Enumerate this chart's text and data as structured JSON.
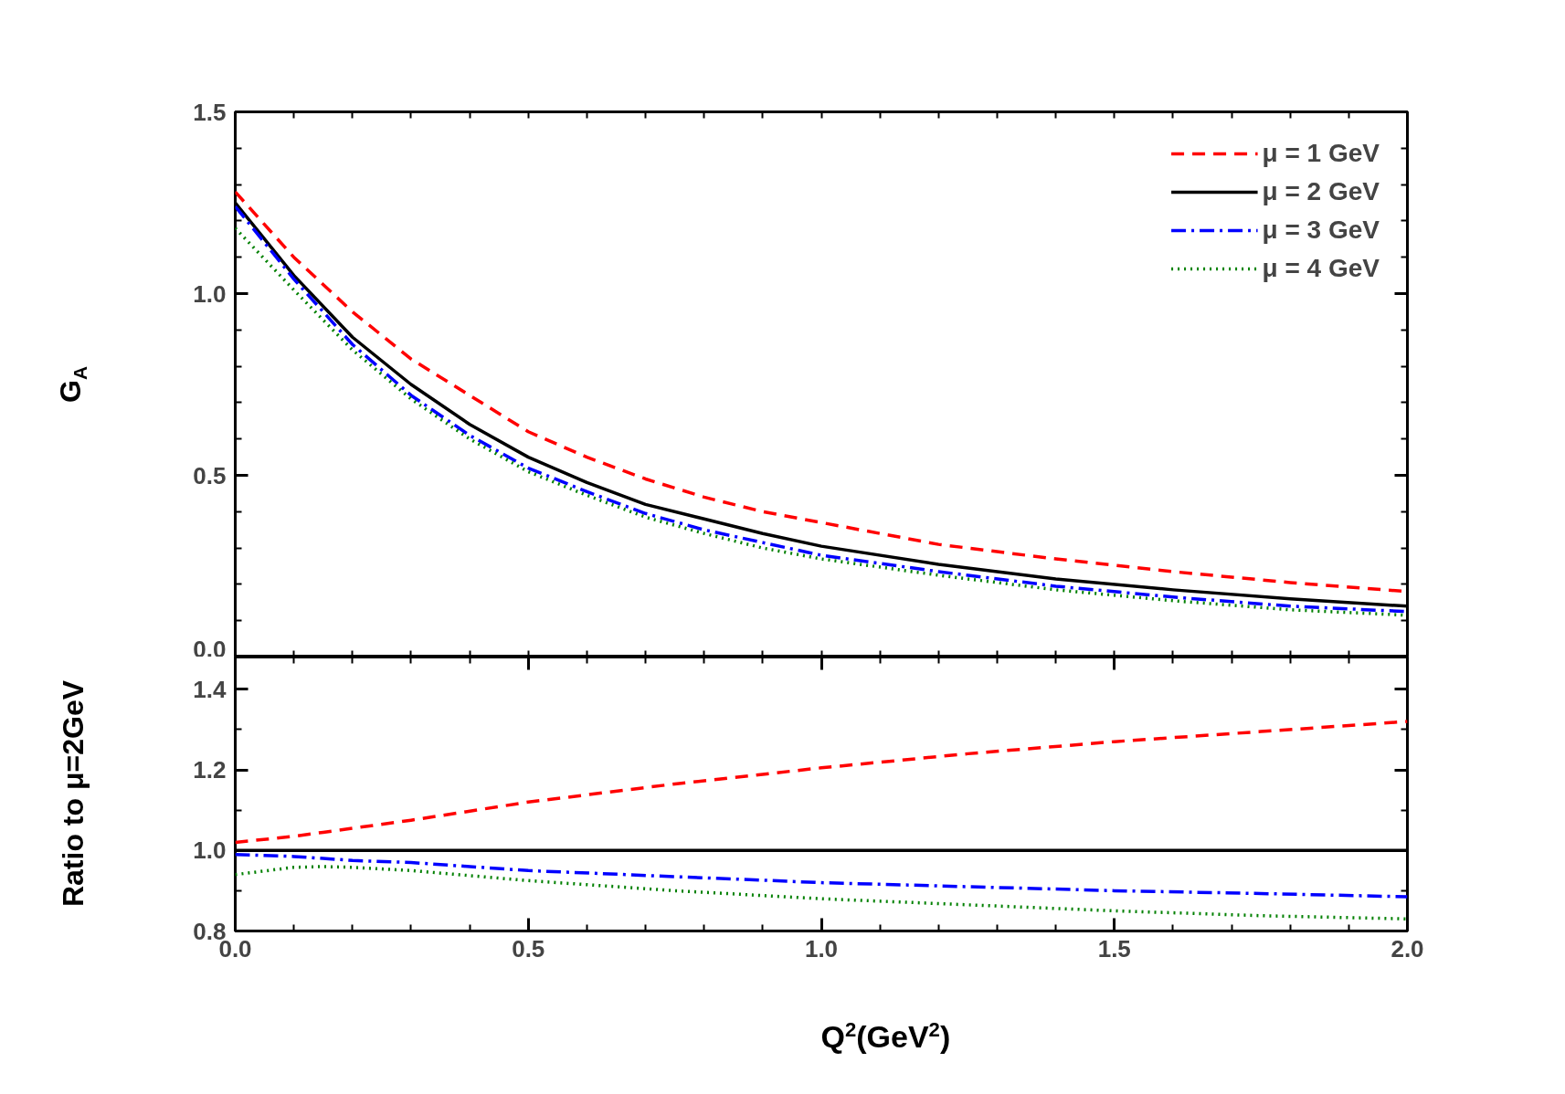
{
  "chart_data": [
    {
      "type": "line",
      "ylabel": "G$_{A}$",
      "xlim": [
        0,
        2
      ],
      "ylim": [
        0,
        1.5
      ],
      "xticks": [
        {
          "value": 0,
          "label": null
        },
        {
          "value": 0.1,
          "label": null
        },
        {
          "value": 0.2,
          "label": null
        },
        {
          "value": 0.3,
          "label": null
        },
        {
          "value": 0.4,
          "label": null
        },
        {
          "value": 0.5,
          "label": null
        },
        {
          "value": 0.6,
          "label": null
        },
        {
          "value": 0.7,
          "label": null
        },
        {
          "value": 0.8,
          "label": null
        },
        {
          "value": 0.9,
          "label": null
        },
        {
          "value": 1,
          "label": null
        },
        {
          "value": 1.1,
          "label": null
        },
        {
          "value": 1.2,
          "label": null
        },
        {
          "value": 1.3,
          "label": null
        },
        {
          "value": 1.4,
          "label": null
        },
        {
          "value": 1.5,
          "label": null
        },
        {
          "value": 1.6,
          "label": null
        },
        {
          "value": 1.7,
          "label": null
        },
        {
          "value": 1.8,
          "label": null
        },
        {
          "value": 1.9,
          "label": null
        },
        {
          "value": 2,
          "label": null
        }
      ],
      "yticks": [
        {
          "value": 0,
          "label": "0.0"
        },
        {
          "value": 0.1,
          "label": null
        },
        {
          "value": 0.2,
          "label": null
        },
        {
          "value": 0.3,
          "label": null
        },
        {
          "value": 0.4,
          "label": null
        },
        {
          "value": 0.5,
          "label": "0.5"
        },
        {
          "value": 0.6,
          "label": null
        },
        {
          "value": 0.7,
          "label": null
        },
        {
          "value": 0.8,
          "label": null
        },
        {
          "value": 0.9,
          "label": null
        },
        {
          "value": 1,
          "label": "1.0"
        },
        {
          "value": 1.1,
          "label": null
        },
        {
          "value": 1.2,
          "label": null
        },
        {
          "value": 1.3,
          "label": null
        },
        {
          "value": 1.4,
          "label": null
        },
        {
          "value": 1.5,
          "label": "1.5"
        }
      ],
      "tick_labels": "y",
      "legend": "top right",
      "x": [
        0,
        0.1,
        0.2,
        0.3,
        0.4,
        0.5,
        0.6,
        0.7,
        0.8,
        0.9,
        1.0,
        1.2,
        1.4,
        1.6,
        1.8,
        2.0
      ],
      "series": [
        {
          "name": "μ = 1 GeV",
          "color": "#ff0000",
          "line_style": "dashed",
          "values": [
            1.28,
            1.1,
            0.95,
            0.82,
            0.72,
            0.62,
            0.55,
            0.49,
            0.44,
            0.4,
            0.37,
            0.31,
            0.27,
            0.235,
            0.205,
            0.18
          ]
        },
        {
          "name": "μ = 2 GeV",
          "color": "#000000",
          "line_style": "solid",
          "values": [
            1.25,
            1.05,
            0.88,
            0.75,
            0.64,
            0.55,
            0.48,
            0.42,
            0.38,
            0.34,
            0.305,
            0.255,
            0.215,
            0.185,
            0.16,
            0.14
          ]
        },
        {
          "name": "μ = 3 GeV",
          "color": "#0000ff",
          "line_style": "dashdot",
          "values": [
            1.24,
            1.04,
            0.86,
            0.72,
            0.61,
            0.52,
            0.455,
            0.395,
            0.35,
            0.315,
            0.28,
            0.235,
            0.195,
            0.165,
            0.14,
            0.125
          ]
        },
        {
          "name": "μ = 4 GeV",
          "color": "#008000",
          "line_style": "dotted",
          "values": [
            1.18,
            1.01,
            0.845,
            0.71,
            0.6,
            0.51,
            0.445,
            0.385,
            0.34,
            0.3,
            0.27,
            0.225,
            0.185,
            0.155,
            0.13,
            0.115
          ]
        }
      ]
    },
    {
      "type": "line",
      "xlabel": "Q$^{2}$(GeV$^{2}$)",
      "ylabel": "Ratio to μ=2GeV",
      "xlim": [
        0,
        2
      ],
      "ylim": [
        0.8,
        1.48
      ],
      "xticks": [
        {
          "value": 0,
          "label": "0.0"
        },
        {
          "value": 0.1,
          "label": null
        },
        {
          "value": 0.2,
          "label": null
        },
        {
          "value": 0.3,
          "label": null
        },
        {
          "value": 0.4,
          "label": null
        },
        {
          "value": 0.5,
          "label": "0.5"
        },
        {
          "value": 0.6,
          "label": null
        },
        {
          "value": 0.7,
          "label": null
        },
        {
          "value": 0.8,
          "label": null
        },
        {
          "value": 0.9,
          "label": null
        },
        {
          "value": 1,
          "label": "1.0"
        },
        {
          "value": 1.1,
          "label": null
        },
        {
          "value": 1.2,
          "label": null
        },
        {
          "value": 1.3,
          "label": null
        },
        {
          "value": 1.4,
          "label": null
        },
        {
          "value": 1.5,
          "label": "1.5"
        },
        {
          "value": 1.6,
          "label": null
        },
        {
          "value": 1.7,
          "label": null
        },
        {
          "value": 1.8,
          "label": null
        },
        {
          "value": 1.9,
          "label": null
        },
        {
          "value": 2,
          "label": "2.0"
        }
      ],
      "yticks": [
        {
          "value": 0.8,
          "label": "0.8"
        },
        {
          "value": 0.9,
          "label": null
        },
        {
          "value": 1.0,
          "label": "1.0"
        },
        {
          "value": 1.1,
          "label": null
        },
        {
          "value": 1.2,
          "label": "1.2"
        },
        {
          "value": 1.3,
          "label": null
        },
        {
          "value": 1.4,
          "label": "1.4"
        }
      ],
      "x": [
        0,
        0.1,
        0.15,
        0.2,
        0.3,
        0.5,
        0.75,
        1.0,
        1.25,
        1.5,
        1.75,
        2.0
      ],
      "series": [
        {
          "color": "#ff0000",
          "line_style": "dashed",
          "values": [
            1.02,
            1.035,
            1.045,
            1.055,
            1.075,
            1.12,
            1.165,
            1.205,
            1.24,
            1.27,
            1.295,
            1.32
          ]
        },
        {
          "color": "#000000",
          "line_style": "solid",
          "values": [
            1.0,
            1.0,
            1.0,
            1.0,
            1.0,
            1.0,
            1.0,
            1.0,
            1.0,
            1.0,
            1.0,
            1.0
          ]
        },
        {
          "color": "#0000ff",
          "line_style": "dashdot",
          "values": [
            0.99,
            0.985,
            0.98,
            0.975,
            0.97,
            0.95,
            0.935,
            0.92,
            0.91,
            0.9,
            0.893,
            0.885
          ]
        },
        {
          "color": "#008000",
          "line_style": "dotted",
          "values": [
            0.94,
            0.958,
            0.96,
            0.958,
            0.95,
            0.925,
            0.9,
            0.88,
            0.865,
            0.85,
            0.838,
            0.83
          ]
        }
      ]
    }
  ]
}
